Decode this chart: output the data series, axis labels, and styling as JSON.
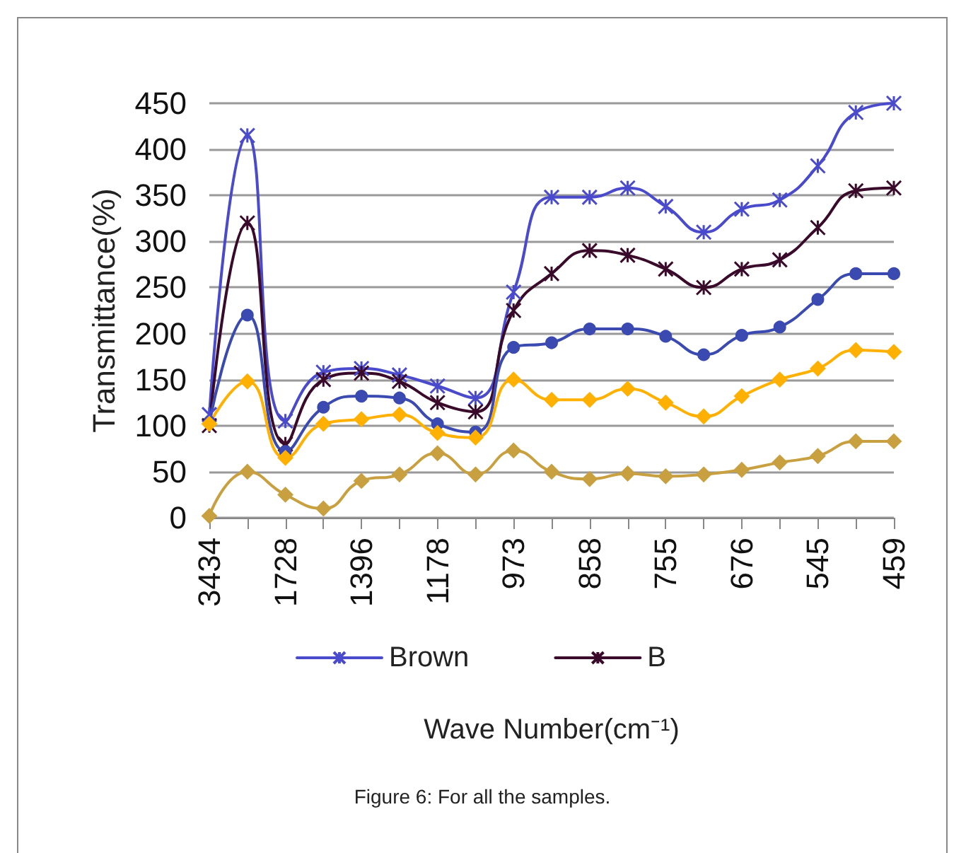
{
  "chart_data": {
    "type": "line",
    "xlabel": "Wave Number(cm⁻¹)",
    "ylabel": "Transmittance(%)",
    "annotations": [
      "Figure 6: For all the samples."
    ],
    "categories": [
      "3434",
      null,
      "1728",
      null,
      "1396",
      null,
      "1178",
      null,
      "973",
      null,
      "858",
      null,
      "755",
      null,
      "676",
      null,
      "545",
      null,
      "459"
    ],
    "series": [
      {
        "name": "Brown",
        "color": "#4a4acc",
        "marker": "cross",
        "values": [
          112,
          415,
          105,
          158,
          162,
          155,
          143,
          130,
          245,
          348,
          348,
          358,
          338,
          310,
          335,
          345,
          382,
          440,
          450
        ]
      },
      {
        "name": "B",
        "color": "#3a0a2a",
        "marker": "cross",
        "values": [
          100,
          320,
          80,
          150,
          157,
          148,
          125,
          115,
          225,
          265,
          290,
          285,
          270,
          250,
          270,
          280,
          315,
          355,
          358
        ]
      },
      {
        "color": "#3a4ab0",
        "marker": "circle",
        "values": [
          103,
          220,
          72,
          120,
          132,
          130,
          102,
          93,
          185,
          190,
          205,
          205,
          197,
          177,
          198,
          207,
          237,
          265,
          265
        ]
      },
      {
        "color": "#ffb000",
        "marker": "diamond",
        "values": [
          102,
          148,
          65,
          102,
          107,
          112,
          92,
          87,
          150,
          128,
          128,
          140,
          125,
          110,
          132,
          150,
          162,
          182,
          180
        ]
      },
      {
        "color": "#c8a040",
        "marker": "diamond",
        "values": [
          2,
          50,
          25,
          10,
          40,
          47,
          70,
          47,
          73,
          50,
          42,
          48,
          45,
          47,
          52,
          60,
          67,
          83,
          83
        ]
      }
    ],
    "ylim": [
      0,
      450
    ],
    "yticks": [
      0,
      50,
      100,
      150,
      200,
      250,
      300,
      350,
      400,
      450
    ],
    "grid": "y",
    "legend": "bottom",
    "line_style": "solid"
  }
}
